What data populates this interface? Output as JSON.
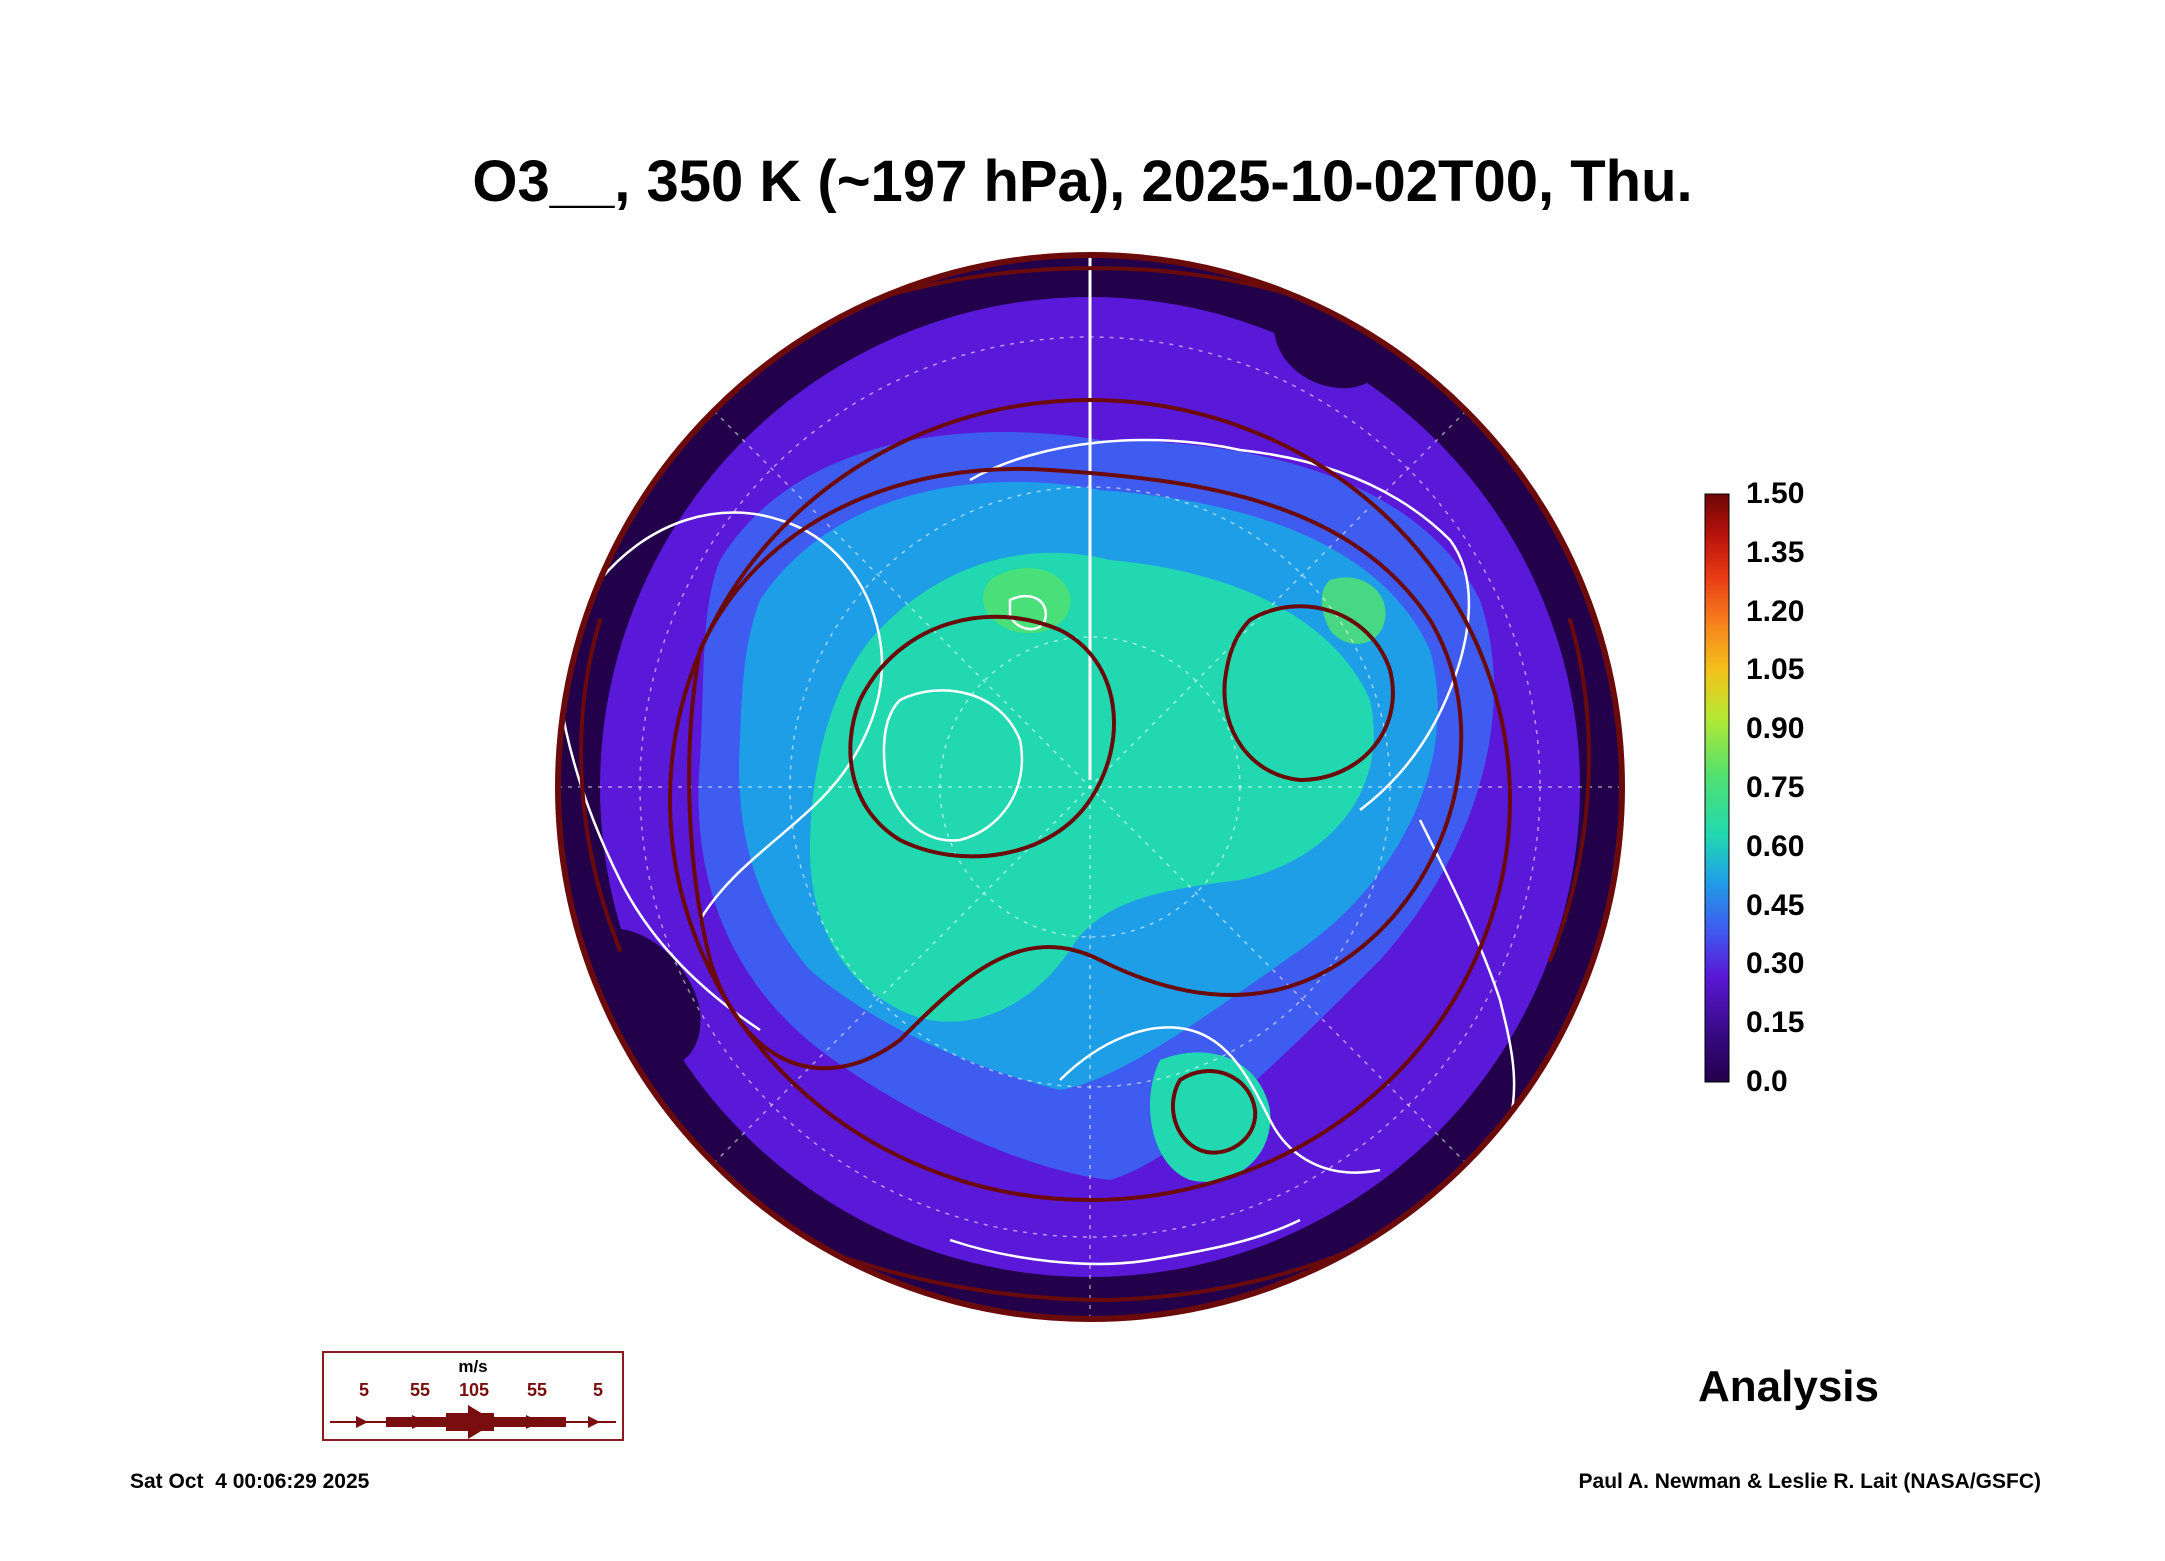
{
  "title": "O3__, 350 K (~197 hPa), 2025-10-02T00, Thu.",
  "colorbar": {
    "labels": [
      "1.50",
      "1.35",
      "1.20",
      "1.05",
      "0.90",
      "0.75",
      "0.60",
      "0.45",
      "0.30",
      "0.15",
      "0.0"
    ],
    "colors": [
      "#23004a",
      "#3a0a8a",
      "#5a18d8",
      "#3f5cf0",
      "#1f9ee8",
      "#22d8b0",
      "#50e070",
      "#b6e832",
      "#f4c21a",
      "#f7821c",
      "#e83a14",
      "#b8120c",
      "#6e0606"
    ]
  },
  "legend": {
    "units": "m/s",
    "values": [
      "5",
      "55",
      "105",
      "55",
      "5"
    ],
    "color": "#7a0d0d"
  },
  "analysis_label": "Analysis",
  "footer": {
    "timestamp": "Sat Oct  4 00:06:29 2025",
    "credit": "Paul A. Newman & Leslie R. Lait (NASA/GSFC)"
  },
  "map": {
    "projection": "polar-stereographic",
    "pole": "north",
    "field_colors": {
      "very_low": "#23004a",
      "low": "#5a18d8",
      "mid_low": "#3f5cf0",
      "mid": "#1f9ee8",
      "mid_high": "#22d8b0",
      "high": "#50e070"
    },
    "coastline_color": "#ffffff",
    "streamline_color": "#6b0a0a"
  }
}
